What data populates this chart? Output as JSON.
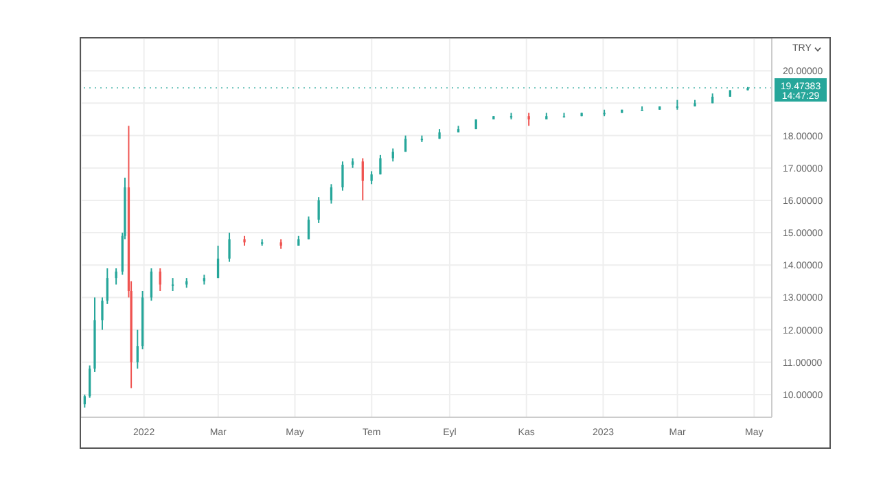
{
  "chart_data": {
    "type": "candlestick",
    "ylabel": "TRY",
    "x": [
      "2021-11-15",
      "2021-11-19",
      "2021-11-23",
      "2021-11-29",
      "2021-12-03",
      "2021-12-10",
      "2021-12-15",
      "2021-12-17",
      "2021-12-20",
      "2021-12-22",
      "2021-12-27",
      "2021-12-31",
      "2022-01-07",
      "2022-01-14",
      "2022-01-24",
      "2022-02-04",
      "2022-02-18",
      "2022-03-01",
      "2022-03-10",
      "2022-03-22",
      "2022-04-05",
      "2022-04-20",
      "2022-05-04",
      "2022-05-12",
      "2022-05-20",
      "2022-05-30",
      "2022-06-08",
      "2022-06-16",
      "2022-06-24",
      "2022-07-01",
      "2022-07-08",
      "2022-07-18",
      "2022-07-28",
      "2022-08-10",
      "2022-08-24",
      "2022-09-08",
      "2022-09-22",
      "2022-10-06",
      "2022-10-20",
      "2022-11-03",
      "2022-11-17",
      "2022-12-01",
      "2022-12-15",
      "2023-01-02",
      "2023-01-16",
      "2023-02-01",
      "2023-02-15",
      "2023-03-01",
      "2023-03-15",
      "2023-03-29",
      "2023-04-12",
      "2023-04-26"
    ],
    "ohlc": [
      [
        9.7,
        10.0,
        9.6,
        9.95
      ],
      [
        9.95,
        10.9,
        9.9,
        10.8
      ],
      [
        10.8,
        13.0,
        10.7,
        12.3
      ],
      [
        12.3,
        13.0,
        12.0,
        12.9
      ],
      [
        12.9,
        13.9,
        12.8,
        13.6
      ],
      [
        13.6,
        13.9,
        13.4,
        13.8
      ],
      [
        13.8,
        15.0,
        13.7,
        14.9
      ],
      [
        14.9,
        16.7,
        14.8,
        16.4
      ],
      [
        16.4,
        18.3,
        13.0,
        13.2
      ],
      [
        13.2,
        13.5,
        10.2,
        11.0
      ],
      [
        11.0,
        12.0,
        10.8,
        11.5
      ],
      [
        11.5,
        13.2,
        11.4,
        13.0
      ],
      [
        13.0,
        13.9,
        12.9,
        13.8
      ],
      [
        13.8,
        13.9,
        13.2,
        13.4
      ],
      [
        13.4,
        13.6,
        13.2,
        13.4
      ],
      [
        13.4,
        13.6,
        13.3,
        13.5
      ],
      [
        13.5,
        13.7,
        13.4,
        13.6
      ],
      [
        13.6,
        14.6,
        13.6,
        14.2
      ],
      [
        14.2,
        15.0,
        14.1,
        14.8
      ],
      [
        14.8,
        14.9,
        14.6,
        14.7
      ],
      [
        14.7,
        14.8,
        14.6,
        14.7
      ],
      [
        14.7,
        14.8,
        14.5,
        14.6
      ],
      [
        14.6,
        14.9,
        14.6,
        14.8
      ],
      [
        14.8,
        15.5,
        14.8,
        15.4
      ],
      [
        15.4,
        16.1,
        15.3,
        16.0
      ],
      [
        16.0,
        16.5,
        15.9,
        16.4
      ],
      [
        16.4,
        17.2,
        16.3,
        17.1
      ],
      [
        17.1,
        17.3,
        17.0,
        17.2
      ],
      [
        17.2,
        17.3,
        16.0,
        16.6
      ],
      [
        16.6,
        16.9,
        16.5,
        16.8
      ],
      [
        16.8,
        17.4,
        16.8,
        17.3
      ],
      [
        17.3,
        17.6,
        17.2,
        17.5
      ],
      [
        17.5,
        18.0,
        17.5,
        17.9
      ],
      [
        17.9,
        18.0,
        17.8,
        17.9
      ],
      [
        17.9,
        18.2,
        17.9,
        18.1
      ],
      [
        18.1,
        18.3,
        18.1,
        18.2
      ],
      [
        18.2,
        18.5,
        18.2,
        18.5
      ],
      [
        18.5,
        18.6,
        18.5,
        18.6
      ],
      [
        18.6,
        18.7,
        18.5,
        18.6
      ],
      [
        18.6,
        18.7,
        18.3,
        18.5
      ],
      [
        18.5,
        18.7,
        18.5,
        18.6
      ],
      [
        18.6,
        18.7,
        18.6,
        18.6
      ],
      [
        18.6,
        18.7,
        18.6,
        18.7
      ],
      [
        18.7,
        18.8,
        18.6,
        18.7
      ],
      [
        18.7,
        18.8,
        18.7,
        18.8
      ],
      [
        18.8,
        18.9,
        18.8,
        18.8
      ],
      [
        18.8,
        18.9,
        18.8,
        18.9
      ],
      [
        18.9,
        19.1,
        18.8,
        18.9
      ],
      [
        18.9,
        19.1,
        18.9,
        19.0
      ],
      [
        19.0,
        19.3,
        19.0,
        19.2
      ],
      [
        19.2,
        19.4,
        19.2,
        19.4
      ],
      [
        19.4,
        19.5,
        19.4,
        19.47
      ]
    ],
    "colors": [
      "#26a69a",
      "#26a69a",
      "#26a69a",
      "#26a69a",
      "#26a69a",
      "#26a69a",
      "#26a69a",
      "#26a69a",
      "#ef5350",
      "#ef5350",
      "#26a69a",
      "#26a69a",
      "#26a69a",
      "#ef5350",
      "#26a69a",
      "#26a69a",
      "#26a69a",
      "#26a69a",
      "#26a69a",
      "#ef5350",
      "#26a69a",
      "#ef5350",
      "#26a69a",
      "#26a69a",
      "#26a69a",
      "#26a69a",
      "#26a69a",
      "#26a69a",
      "#ef5350",
      "#26a69a",
      "#26a69a",
      "#26a69a",
      "#26a69a",
      "#26a69a",
      "#26a69a",
      "#26a69a",
      "#26a69a",
      "#26a69a",
      "#26a69a",
      "#ef5350",
      "#26a69a",
      "#26a69a",
      "#26a69a",
      "#26a69a",
      "#26a69a",
      "#26a69a",
      "#26a69a",
      "#26a69a",
      "#26a69a",
      "#26a69a",
      "#26a69a",
      "#26a69a"
    ],
    "xlim": [
      "2021-11-12",
      "2023-05-15"
    ],
    "xticks": [
      {
        "value": "2022-01-01",
        "label": "2022"
      },
      {
        "value": "2022-03-01",
        "label": "Mar"
      },
      {
        "value": "2022-05-01",
        "label": "May"
      },
      {
        "value": "2022-07-01",
        "label": "Tem"
      },
      {
        "value": "2022-09-01",
        "label": "Eyl"
      },
      {
        "value": "2022-11-01",
        "label": "Kas"
      },
      {
        "value": "2023-01-01",
        "label": "2023"
      },
      {
        "value": "2023-03-01",
        "label": "Mar"
      },
      {
        "value": "2023-05-01",
        "label": "May"
      }
    ],
    "ylim": [
      9.3,
      21.0
    ],
    "yticks": [
      {
        "value": 10,
        "label": "10.00000"
      },
      {
        "value": 11,
        "label": "11.00000"
      },
      {
        "value": 12,
        "label": "12.00000"
      },
      {
        "value": 13,
        "label": "13.00000"
      },
      {
        "value": 14,
        "label": "14.00000"
      },
      {
        "value": 15,
        "label": "15.00000"
      },
      {
        "value": 16,
        "label": "16.00000"
      },
      {
        "value": 17,
        "label": "17.00000"
      },
      {
        "value": 18,
        "label": "18.00000"
      },
      {
        "value": 19,
        "label": null
      },
      {
        "value": 20,
        "label": "20.00000"
      }
    ],
    "grid": true,
    "ref_lines": [
      {
        "axis": "y",
        "value": 19.47383,
        "label": "19.47383",
        "color": "#26a69a",
        "line_style": "dotted"
      }
    ],
    "annotations": [
      "14:47:29"
    ]
  }
}
